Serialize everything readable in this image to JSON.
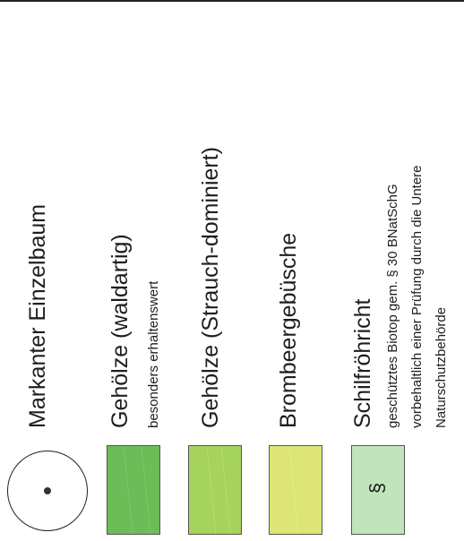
{
  "legend": {
    "items": [
      {
        "id": "einzelbaum",
        "title": "Markanter Einzelbaum",
        "symbol": "circle-dot-icon"
      },
      {
        "id": "gehoelze-wald",
        "title": "Gehölze (waldartig)",
        "subtitle": "besonders erhaltenswert",
        "color": "#6cbd58"
      },
      {
        "id": "gehoelze-strauch",
        "title": "Gehölze (Strauch-dominiert)",
        "color": "#a6d35b"
      },
      {
        "id": "brombeer",
        "title": "Brombeergebüsche",
        "color": "#dce575"
      },
      {
        "id": "schilf",
        "title": "Schilfröhricht",
        "lines": [
          "geschütztes Biotop gem. § 30 BNatSchG",
          "vorbehaltlich einer Prüfung durch die Untere",
          "Naturschutzbehörde"
        ],
        "color": "#c2e4bd",
        "symbol_text": "§"
      }
    ]
  }
}
